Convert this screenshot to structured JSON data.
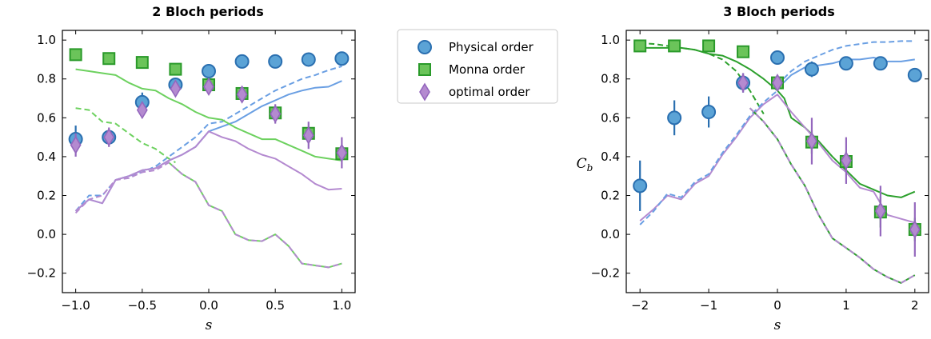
{
  "legend": {
    "placement": "top-center",
    "entries": [
      {
        "label": "Physical order",
        "marker": "circle",
        "color": "#5ba3d6",
        "edge": "#2a6fb0"
      },
      {
        "label": "Monna order",
        "marker": "square",
        "color": "#6bc45a",
        "edge": "#2a9a2a"
      },
      {
        "label": "optimal order",
        "marker": "diamond",
        "color": "#b48ad0",
        "edge": "#9467bd"
      }
    ]
  },
  "chart_data": [
    {
      "type": "scatter",
      "title": "2 Bloch periods",
      "xlabel": "s",
      "ylabel": "C_b",
      "xlim": [
        -1.1,
        1.1
      ],
      "ylim": [
        -0.3,
        1.05
      ],
      "xticks": [
        -1.0,
        -0.5,
        0.0,
        0.5,
        1.0
      ],
      "xtick_labels": [
        "−1.0",
        "−0.5",
        "0.0",
        "0.5",
        "1.0"
      ],
      "yticks": [
        -0.2,
        0.0,
        0.2,
        0.4,
        0.6,
        0.8,
        1.0
      ],
      "ytick_labels": [
        "−0.2",
        "0.0",
        "0.2",
        "0.4",
        "0.6",
        "0.8",
        "1.0"
      ],
      "ylabel_visible": false,
      "points": [
        {
          "series": "Physical order",
          "x": [
            -1.0,
            -0.75,
            -0.5,
            -0.25,
            0.0,
            0.25,
            0.5,
            0.75,
            1.0
          ],
          "y": [
            0.49,
            0.5,
            0.68,
            0.77,
            0.84,
            0.89,
            0.89,
            0.9,
            0.905
          ],
          "err": [
            0.07,
            0.03,
            0.05,
            0.02,
            0.02,
            0.02,
            0.02,
            0.02,
            0.02
          ]
        },
        {
          "series": "Monna order",
          "x": [
            -1.0,
            -0.75,
            -0.5,
            -0.25,
            0.0,
            0.25,
            0.5,
            0.75,
            1.0
          ],
          "y": [
            0.925,
            0.905,
            0.885,
            0.85,
            0.77,
            0.725,
            0.625,
            0.52,
            0.415
          ],
          "err": [
            0.02,
            0.02,
            0.02,
            0.02,
            0.03,
            0.03,
            0.03,
            0.03,
            0.03
          ]
        },
        {
          "series": "optimal order",
          "x": [
            -1.0,
            -0.75,
            -0.5,
            -0.25,
            0.0,
            0.25,
            0.5,
            0.75,
            1.0
          ],
          "y": [
            0.46,
            0.5,
            0.64,
            0.75,
            0.76,
            0.72,
            0.62,
            0.51,
            0.42
          ],
          "err": [
            0.06,
            0.05,
            0.04,
            0.03,
            0.03,
            0.03,
            0.05,
            0.07,
            0.08
          ]
        }
      ],
      "lines": [
        {
          "color": "#6a9fe3",
          "dash": false,
          "x": [
            -1.0,
            -0.9,
            -0.8,
            -0.7,
            -0.6,
            -0.5,
            -0.4,
            -0.3,
            -0.2,
            -0.1,
            0.0,
            0.1,
            0.2,
            0.3,
            0.4,
            0.5,
            0.6,
            0.7,
            0.8,
            0.9,
            1.0
          ],
          "y": [
            0.12,
            0.18,
            0.16,
            0.28,
            0.3,
            0.33,
            0.34,
            0.38,
            0.41,
            0.45,
            0.53,
            0.555,
            0.58,
            0.62,
            0.66,
            0.69,
            0.72,
            0.74,
            0.755,
            0.76,
            0.79
          ]
        },
        {
          "color": "#6a9fe3",
          "dash": true,
          "x": [
            -1.0,
            -0.9,
            -0.8,
            -0.7,
            -0.6,
            -0.5,
            -0.4,
            -0.3,
            -0.2,
            -0.1,
            0.0,
            0.1,
            0.2,
            0.3,
            0.4,
            0.5,
            0.6,
            0.7,
            0.8,
            0.9,
            1.0
          ],
          "y": [
            0.12,
            0.2,
            0.2,
            0.28,
            0.3,
            0.32,
            0.35,
            0.4,
            0.45,
            0.5,
            0.57,
            0.58,
            0.62,
            0.66,
            0.7,
            0.74,
            0.77,
            0.8,
            0.82,
            0.845,
            0.865
          ]
        },
        {
          "color": "#6dd15f",
          "dash": false,
          "x": [
            -1.0,
            -0.9,
            -0.8,
            -0.7,
            -0.6,
            -0.5,
            -0.4,
            -0.3,
            -0.2,
            -0.1,
            0.0,
            0.1,
            0.2,
            0.3,
            0.4,
            0.5,
            0.6,
            0.7,
            0.8,
            0.9,
            1.0
          ],
          "y": [
            0.85,
            0.84,
            0.83,
            0.82,
            0.78,
            0.75,
            0.74,
            0.7,
            0.67,
            0.63,
            0.6,
            0.59,
            0.55,
            0.52,
            0.49,
            0.49,
            0.46,
            0.43,
            0.4,
            0.39,
            0.38
          ]
        },
        {
          "color": "#6dd15f",
          "dash": true,
          "x": [
            -1.0,
            -0.9,
            -0.8,
            -0.7,
            -0.6,
            -0.5,
            -0.4,
            -0.3,
            -0.25
          ],
          "y": [
            0.65,
            0.64,
            0.58,
            0.57,
            0.52,
            0.47,
            0.44,
            0.39,
            0.37
          ]
        },
        {
          "color": "#b48ad0",
          "dash": false,
          "x": [
            -1.0,
            -0.9,
            -0.8,
            -0.7,
            -0.6,
            -0.5,
            -0.4,
            -0.3,
            -0.2,
            -0.1,
            0.0,
            0.1,
            0.2,
            0.3,
            0.4,
            0.5,
            0.6,
            0.7,
            0.8,
            0.9,
            1.0
          ],
          "y": [
            0.12,
            0.18,
            0.16,
            0.28,
            0.3,
            0.33,
            0.34,
            0.38,
            0.41,
            0.45,
            0.53,
            0.5,
            0.48,
            0.44,
            0.41,
            0.39,
            0.35,
            0.31,
            0.26,
            0.23,
            0.235
          ]
        },
        {
          "color": "#6dd15f",
          "dash": false,
          "x": [
            -0.3,
            -0.2,
            -0.1,
            0.0,
            0.1,
            0.2,
            0.3,
            0.4,
            0.5,
            0.6,
            0.7,
            0.8,
            0.9,
            1.0
          ],
          "y": [
            0.37,
            0.31,
            0.27,
            0.15,
            0.12,
            0.0,
            -0.03,
            -0.035,
            0.0,
            -0.06,
            -0.15,
            -0.16,
            -0.17,
            -0.15
          ]
        },
        {
          "color": "#b48ad0",
          "dash": true,
          "x": [
            -1.0,
            -0.9,
            -0.8,
            -0.7,
            -0.6,
            -0.5,
            -0.4,
            -0.3,
            -0.2,
            -0.1,
            0.0,
            0.1,
            0.2,
            0.3,
            0.4,
            0.5,
            0.6,
            0.7,
            0.8,
            0.9,
            1.0
          ],
          "y": [
            0.11,
            0.18,
            0.2,
            0.28,
            0.29,
            0.32,
            0.33,
            0.37,
            0.31,
            0.27,
            0.15,
            0.12,
            0.0,
            -0.03,
            -0.035,
            0.0,
            -0.06,
            -0.15,
            -0.16,
            -0.17,
            -0.15
          ]
        }
      ]
    },
    {
      "type": "scatter",
      "title": "3 Bloch periods",
      "xlabel": "s",
      "ylabel": "C_b",
      "xlim": [
        -2.2,
        2.2
      ],
      "ylim": [
        -0.3,
        1.05
      ],
      "xticks": [
        -2,
        -1,
        0,
        1,
        2
      ],
      "xtick_labels": [
        "−2",
        "−1",
        "0",
        "1",
        "2"
      ],
      "yticks": [
        -0.2,
        0.0,
        0.2,
        0.4,
        0.6,
        0.8,
        1.0
      ],
      "ytick_labels": [
        "−0.2",
        "0.0",
        "0.2",
        "0.4",
        "0.6",
        "0.8",
        "1.0"
      ],
      "ylabel_visible": true,
      "points": [
        {
          "series": "Physical order",
          "x": [
            -2.0,
            -1.5,
            -1.0,
            -0.5,
            0.0,
            0.5,
            1.0,
            1.5,
            2.0
          ],
          "y": [
            0.25,
            0.6,
            0.63,
            0.78,
            0.91,
            0.85,
            0.88,
            0.88,
            0.82
          ],
          "err": [
            0.13,
            0.09,
            0.08,
            0.05,
            0.03,
            0.04,
            0.03,
            0.02,
            0.03
          ]
        },
        {
          "series": "Monna order",
          "x": [
            -2.0,
            -1.5,
            -1.0,
            -0.5,
            0.0,
            0.5,
            1.0,
            1.5,
            2.0
          ],
          "y": [
            0.97,
            0.97,
            0.97,
            0.94,
            0.78,
            0.475,
            0.375,
            0.115,
            0.025
          ],
          "err": [
            0.02,
            0.02,
            0.02,
            0.02,
            0.03,
            0.06,
            0.05,
            0.08,
            0.06
          ]
        },
        {
          "series": "optimal order",
          "x": [
            -0.5,
            0.0,
            0.5,
            1.0,
            1.5,
            2.0
          ],
          "y": [
            0.78,
            0.78,
            0.48,
            0.38,
            0.12,
            0.025
          ],
          "err": [
            0.05,
            0.04,
            0.12,
            0.12,
            0.13,
            0.14
          ]
        }
      ],
      "lines": [
        {
          "color": "#6a9fe3",
          "dash": false,
          "x": [
            0.0,
            0.2,
            0.4,
            0.6,
            0.8,
            1.0,
            1.2,
            1.4,
            1.6,
            1.8,
            2.0
          ],
          "y": [
            0.75,
            0.82,
            0.86,
            0.87,
            0.88,
            0.9,
            0.9,
            0.91,
            0.89,
            0.89,
            0.9
          ]
        },
        {
          "color": "#6a9fe3",
          "dash": true,
          "x": [
            0.0,
            0.2,
            0.4,
            0.6,
            0.8,
            1.0,
            1.2,
            1.4,
            1.6,
            1.8,
            2.0
          ],
          "y": [
            0.77,
            0.84,
            0.89,
            0.92,
            0.95,
            0.97,
            0.98,
            0.99,
            0.99,
            0.995,
            0.995
          ]
        },
        {
          "color": "#2ca02c",
          "dash": false,
          "x": [
            -2.0,
            -1.8,
            -1.6,
            -1.4,
            -1.2,
            -1.0,
            -0.8,
            -0.6,
            -0.4,
            -0.2,
            0.0,
            0.1,
            0.2,
            0.4,
            0.6,
            0.8,
            1.0,
            1.2,
            1.4,
            1.6,
            1.8,
            2.0
          ],
          "y": [
            0.96,
            0.96,
            0.96,
            0.96,
            0.95,
            0.93,
            0.92,
            0.89,
            0.85,
            0.8,
            0.74,
            0.7,
            0.6,
            0.55,
            0.48,
            0.4,
            0.33,
            0.26,
            0.23,
            0.2,
            0.19,
            0.22
          ]
        },
        {
          "color": "#2ca02c",
          "dash": true,
          "x": [
            -2.0,
            -1.8,
            -1.6,
            -1.4,
            -1.2,
            -1.0,
            -0.8,
            -0.6,
            -0.4,
            -0.2
          ],
          "y": [
            0.985,
            0.98,
            0.97,
            0.96,
            0.95,
            0.93,
            0.9,
            0.84,
            0.74,
            0.62
          ]
        },
        {
          "color": "#b48ad0",
          "dash": false,
          "x": [
            -2.0,
            -1.8,
            -1.6,
            -1.4,
            -1.2,
            -1.0,
            -0.8,
            -0.6,
            -0.4,
            -0.2,
            0.0,
            0.2,
            0.4,
            0.6,
            0.8,
            1.0,
            1.2,
            1.4,
            1.6,
            1.8,
            2.0
          ],
          "y": [
            0.07,
            0.13,
            0.2,
            0.18,
            0.26,
            0.3,
            0.41,
            0.5,
            0.6,
            0.67,
            0.72,
            0.63,
            0.55,
            0.47,
            0.38,
            0.32,
            0.24,
            0.22,
            0.1,
            0.08,
            0.06
          ]
        },
        {
          "color": "#6a9fe3",
          "dash": true,
          "x": [
            -2.0,
            -1.8,
            -1.6,
            -1.4,
            -1.2,
            -1.0,
            -0.8,
            -0.6,
            -0.4,
            -0.2,
            0.0
          ],
          "y": [
            0.05,
            0.12,
            0.21,
            0.19,
            0.27,
            0.31,
            0.42,
            0.51,
            0.61,
            0.68,
            0.74
          ]
        },
        {
          "color": "#2ca02c",
          "dash": false,
          "x": [
            -0.4,
            -0.2,
            0.0,
            0.2,
            0.4,
            0.6,
            0.8,
            1.0,
            1.2,
            1.4,
            1.6,
            1.8,
            2.0
          ],
          "y": [
            0.65,
            0.58,
            0.49,
            0.36,
            0.25,
            0.1,
            -0.02,
            -0.07,
            -0.12,
            -0.18,
            -0.22,
            -0.25,
            -0.21
          ]
        },
        {
          "color": "#b48ad0",
          "dash": true,
          "x": [
            -0.4,
            -0.2,
            0.0,
            0.2,
            0.4,
            0.6,
            0.8,
            1.0,
            1.2,
            1.4,
            1.6,
            1.8,
            2.0
          ],
          "y": [
            0.65,
            0.58,
            0.49,
            0.36,
            0.25,
            0.1,
            -0.02,
            -0.07,
            -0.12,
            -0.18,
            -0.22,
            -0.25,
            -0.21
          ]
        }
      ]
    }
  ]
}
